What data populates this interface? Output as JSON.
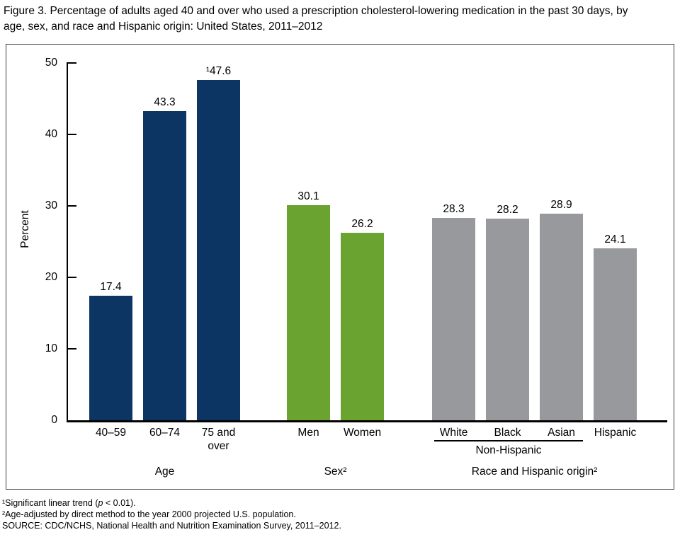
{
  "title": "Figure 3. Percentage of adults aged 40 and over who used a prescription cholesterol-lowering medication in the past 30 days, by age, sex, and race and Hispanic origin: United States, 2011–2012",
  "chart_data": {
    "type": "bar",
    "title": "Percentage of adults aged 40 and over who used a prescription cholesterol-lowering medication in the past 30 days, by age, sex, and race and Hispanic origin: United States, 2011–2012",
    "xlabel": "",
    "ylabel": "Percent",
    "ylim": [
      0,
      50
    ],
    "yticks": [
      0,
      10,
      20,
      30,
      40,
      50
    ],
    "grid": false,
    "legend": "none",
    "groups": [
      {
        "label": "Age",
        "color": "#0d3564",
        "bars": [
          {
            "category": "40–59",
            "value": 17.4,
            "value_label": "17.4"
          },
          {
            "category": "60–74",
            "value": 43.3,
            "value_label": "43.3"
          },
          {
            "category": "75 and\nover",
            "value": 47.6,
            "value_label": "¹47.6"
          }
        ]
      },
      {
        "label": "Sex²",
        "color": "#6aa32f",
        "bars": [
          {
            "category": "Men",
            "value": 30.1,
            "value_label": "30.1"
          },
          {
            "category": "Women",
            "value": 26.2,
            "value_label": "26.2"
          }
        ]
      },
      {
        "label": "Race and Hispanic origin²",
        "color": "#97999c",
        "subgroup_label": "Non-Hispanic",
        "subgroup_span": [
          0,
          2
        ],
        "bars": [
          {
            "category": "White",
            "value": 28.3,
            "value_label": "28.3"
          },
          {
            "category": "Black",
            "value": 28.2,
            "value_label": "28.2"
          },
          {
            "category": "Asian",
            "value": 28.9,
            "value_label": "28.9"
          },
          {
            "category": "Hispanic",
            "value": 24.1,
            "value_label": "24.1"
          }
        ]
      }
    ]
  },
  "footnotes": {
    "note1_pre": "¹Significant linear trend (",
    "note1_italic": "p",
    "note1_post": " < 0.01).",
    "note2": "²Age-adjusted by direct method to the year 2000 projected U.S. population.",
    "source": "SOURCE: CDC/NCHS, National Health and Nutrition Examination Survey, 2011–2012."
  }
}
